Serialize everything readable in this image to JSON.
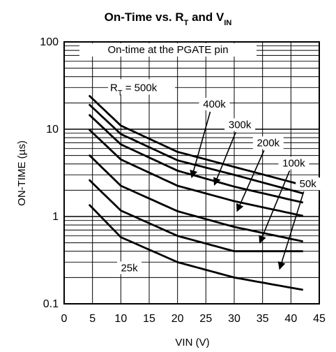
{
  "chart_data": {
    "type": "line",
    "title": {
      "prefix": "On-Time vs. R",
      "sub1": "T",
      "middle": " and V",
      "sub2": "IN"
    },
    "xlabel": "VIN (V)",
    "ylabel": "ON-TIME (µs)",
    "xlim": [
      0,
      45
    ],
    "ylim": [
      0.1,
      100
    ],
    "y_scale": "log",
    "x_ticks": [
      "0",
      "5",
      "10",
      "15",
      "20",
      "25",
      "30",
      "35",
      "40",
      "45"
    ],
    "y_ticks": [
      "0.1",
      "1",
      "10",
      "100"
    ],
    "grid": true,
    "plot_annotation": "On-time at the PGATE pin",
    "rt_label": {
      "prefix": "R",
      "sub": "T",
      "suffix": " = 500k"
    },
    "series": [
      {
        "name": "500k",
        "points": [
          [
            4.5,
            24
          ],
          [
            10,
            11
          ],
          [
            20,
            5.5
          ],
          [
            30,
            3.7
          ],
          [
            42,
            2.3
          ]
        ]
      },
      {
        "name": "400k",
        "points": [
          [
            4.5,
            19
          ],
          [
            10,
            8.8
          ],
          [
            20,
            4.4
          ],
          [
            30,
            3.0
          ],
          [
            42,
            1.85
          ]
        ]
      },
      {
        "name": "300k",
        "points": [
          [
            4.5,
            14.5
          ],
          [
            10,
            6.7
          ],
          [
            20,
            3.35
          ],
          [
            30,
            2.2
          ],
          [
            42,
            1.45
          ]
        ]
      },
      {
        "name": "200k",
        "points": [
          [
            4.5,
            9.8
          ],
          [
            10,
            4.5
          ],
          [
            20,
            2.25
          ],
          [
            30,
            1.5
          ],
          [
            42,
            1.02
          ]
        ]
      },
      {
        "name": "100k",
        "points": [
          [
            4.5,
            5.0
          ],
          [
            10,
            2.25
          ],
          [
            20,
            1.15
          ],
          [
            30,
            0.76
          ],
          [
            42,
            0.52
          ]
        ]
      },
      {
        "name": "50k",
        "points": [
          [
            4.5,
            2.6
          ],
          [
            10,
            1.17
          ],
          [
            20,
            0.6
          ],
          [
            30,
            0.4
          ],
          [
            42,
            0.4
          ]
        ]
      },
      {
        "name": "25k",
        "points": [
          [
            4.5,
            1.35
          ],
          [
            10,
            0.58
          ],
          [
            20,
            0.3
          ],
          [
            30,
            0.2
          ],
          [
            42,
            0.145
          ]
        ]
      }
    ],
    "curve_labels": [
      {
        "text": "400k",
        "at": [
          26.5,
          18
        ],
        "target": [
          22.5,
          2.8
        ]
      },
      {
        "text": "300k",
        "at": [
          31,
          10.5
        ],
        "target": [
          26.5,
          2.3
        ]
      },
      {
        "text": "200k",
        "at": [
          36,
          6.5
        ],
        "target": [
          30.5,
          1.15
        ]
      },
      {
        "text": "100k",
        "at": [
          40.5,
          3.8
        ],
        "target": [
          34.5,
          0.5
        ]
      },
      {
        "text": "50k",
        "at": [
          43,
          2.2
        ],
        "target": [
          38,
          0.25
        ]
      },
      {
        "text": "25k",
        "at": [
          11.5,
          0.24
        ],
        "target": null
      }
    ]
  }
}
